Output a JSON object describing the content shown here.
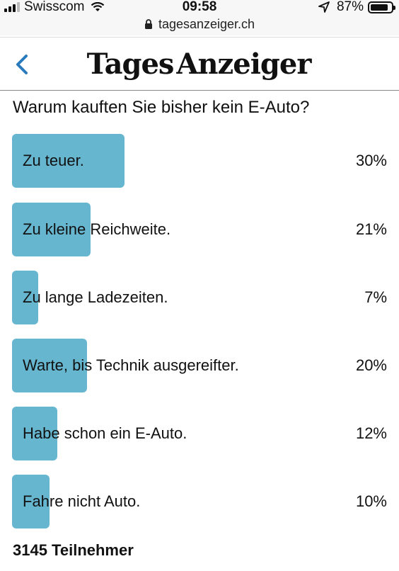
{
  "status_bar": {
    "carrier": "Swisscom",
    "time": "09:58",
    "battery_percent": "87%",
    "battery_level": 0.87,
    "icons": [
      "signal-icon",
      "wifi-icon",
      "location-icon",
      "battery-icon"
    ]
  },
  "url_bar": {
    "url": "tagesanzeiger.ch",
    "icon": "lock-icon"
  },
  "header": {
    "back_icon": "chevron-left-icon",
    "logo_left": "Tages",
    "logo_right": "Anzeiger",
    "accent_color": "#2a7bbd"
  },
  "poll": {
    "question": "Warum kauften Sie bisher kein E-Auto?",
    "bar_color": "#66b6d0",
    "options": [
      {
        "label": "Zu teuer.",
        "percent_text": "30%",
        "percent": 30
      },
      {
        "label": "Zu kleine Reichweite.",
        "percent_text": "21%",
        "percent": 21
      },
      {
        "label": "Zu lange Ladezeiten.",
        "percent_text": "7%",
        "percent": 7
      },
      {
        "label": "Warte, bis Technik ausgereifter.",
        "percent_text": "20%",
        "percent": 20
      },
      {
        "label": "Habe schon ein E-Auto.",
        "percent_text": "12%",
        "percent": 12
      },
      {
        "label": "Fahre nicht Auto.",
        "percent_text": "10%",
        "percent": 10
      }
    ],
    "participants": "3145 Teilnehmer"
  }
}
